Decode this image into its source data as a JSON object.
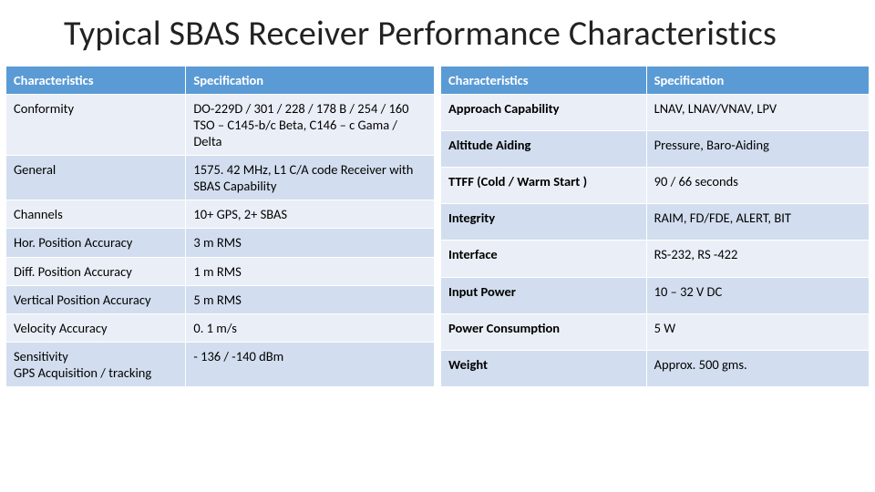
{
  "title": "Typical SBAS Receiver Performance Characteristics",
  "header_bg": "#5b9bd5",
  "header_fg": "#ffffff",
  "cell_bg_band_a": "#eaeff7",
  "cell_bg_band_b": "#d2deef",
  "left_table": {
    "headers": [
      "Characteristics",
      "Specification"
    ],
    "rows": [
      {
        "c": "Conformity",
        "s": "DO-229D / 301 / 228 / 178 B / 254 / 160\nTSO – C145-b/c Beta, C146 – c Gama / Delta",
        "band": "a"
      },
      {
        "c": "General",
        "s": "1575. 42 MHz, L1 C/A code Receiver with SBAS Capability",
        "band": "b"
      },
      {
        "c": "Channels",
        "s": "10+ GPS, 2+ SBAS",
        "band": "a"
      },
      {
        "c": "Hor. Position Accuracy",
        "s": "3 m RMS",
        "band": "b"
      },
      {
        "c": "Diff. Position Accuracy",
        "s": "1 m RMS",
        "band": "a"
      },
      {
        "c": "Vertical Position Accuracy",
        "s": "5 m RMS",
        "band": "b"
      },
      {
        "c": "Velocity Accuracy",
        "s": "0. 1 m/s",
        "band": "a"
      },
      {
        "c": "Sensitivity\nGPS Acquisition / tracking",
        "s": "- 136 / -140 dBm",
        "band": "b"
      }
    ]
  },
  "right_table": {
    "headers": [
      "Characteristics",
      "Specification"
    ],
    "rows": [
      {
        "c": "Approach Capability",
        "s": "LNAV, LNAV/VNAV, LPV",
        "band": "a"
      },
      {
        "c": "Altitude Aiding",
        "s": "Pressure, Baro-Aiding",
        "band": "b"
      },
      {
        "c": "TTFF (Cold / Warm Start )",
        "s": "90 / 66 seconds",
        "band": "a"
      },
      {
        "c": "Integrity",
        "s": "RAIM, FD/FDE, ALERT, BIT",
        "band": "b"
      },
      {
        "c": "Interface",
        "s": "RS-232, RS -422",
        "band": "a"
      },
      {
        "c": "Input Power",
        "s": "10 – 32 V DC",
        "band": "b"
      },
      {
        "c": "Power Consumption",
        "s": "5 W",
        "band": "a"
      },
      {
        "c": "Weight",
        "s": "Approx. 500 gms.",
        "band": "b"
      }
    ]
  }
}
